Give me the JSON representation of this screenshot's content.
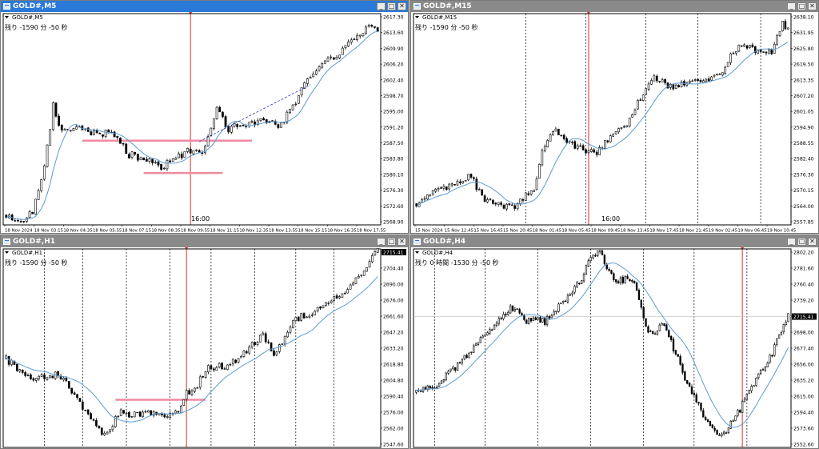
{
  "colors": {
    "active_title": "#2a78d8",
    "inactive_title": "#8a8a8a",
    "candle": "#000000",
    "moving_average": "#5b9bd5",
    "session_line": "#e03030",
    "zone_line": "#f08aa0",
    "trend_line": "#3030c0",
    "grid": "#000000"
  },
  "window_buttons": {
    "minimize": "_",
    "maximize": "□",
    "close": "✕"
  },
  "windows": [
    {
      "id": "m5",
      "title": "GOLD#,M5",
      "label": "GOLD#,M5",
      "active": true,
      "countdown": "残り -1590 分 -50 秒",
      "price_labels": [
        "2617.30",
        "2613.60",
        "2609.90",
        "2606.20",
        "2602.40",
        "2598.70",
        "2595.00",
        "2591.20",
        "2587.50",
        "2583.80",
        "2580.10",
        "2576.30",
        "2572.60",
        "2568.90"
      ],
      "time_labels": [
        "18 Nov 2024",
        "18 Nov 03:15",
        "18 Nov 04:35",
        "18 Nov 05:55",
        "18 Nov 07:15",
        "18 Nov 08:35",
        "18 Nov 09:55",
        "18 Nov 11:15",
        "18 Nov 12:35",
        "18 Nov 13:55",
        "18 Nov 15:15",
        "18 Nov 16:35",
        "18 Nov 17:55"
      ],
      "vline_label": "16:00",
      "chart_data": {
        "type": "candlestick",
        "ylim": [
          2568.9,
          2617.3
        ],
        "anchors": [
          [
            0,
            2571
          ],
          [
            5,
            2570
          ],
          [
            9,
            2572
          ],
          [
            13,
            2582
          ],
          [
            16,
            2596
          ],
          [
            19,
            2590
          ],
          [
            24,
            2591
          ],
          [
            29,
            2590
          ],
          [
            34,
            2590
          ],
          [
            38,
            2589
          ],
          [
            42,
            2585
          ],
          [
            47,
            2584
          ],
          [
            52,
            2582
          ],
          [
            58,
            2584
          ],
          [
            63,
            2586
          ],
          [
            67,
            2585
          ],
          [
            72,
            2595
          ],
          [
            76,
            2591
          ],
          [
            82,
            2592
          ],
          [
            88,
            2593
          ],
          [
            93,
            2591
          ],
          [
            98,
            2596
          ],
          [
            103,
            2602
          ],
          [
            108,
            2606
          ],
          [
            113,
            2608
          ],
          [
            118,
            2611
          ],
          [
            123,
            2614
          ],
          [
            127,
            2614
          ]
        ],
        "ma_period": 9,
        "red_vline_bar": 63,
        "zones": [
          {
            "y": 2588.2,
            "from": 26,
            "to": 84
          },
          {
            "y": 2580.8,
            "from": 47,
            "to": 74
          }
        ],
        "dashed_line": {
          "from": [
            66,
            2588
          ],
          "to": [
            104,
            2601
          ]
        }
      }
    },
    {
      "id": "m15",
      "title": "GOLD#,M15",
      "label": "GOLD#,M15",
      "active": false,
      "countdown": "残り -1590 分 -50 秒",
      "price_labels": [
        "2638.10",
        "2631.95",
        "2625.80",
        "2619.50",
        "2613.35",
        "2607.20",
        "2601.05",
        "2594.90",
        "2588.55",
        "2582.40",
        "2576.30",
        "2570.15",
        "2564.00",
        "2557.85"
      ],
      "time_labels": [
        "15 Nov 2024",
        "15 Nov 12:45",
        "15 Nov 16:45",
        "15 Nov 20:45",
        "18 Nov 01:45",
        "18 Nov 05:45",
        "18 Nov 09:45",
        "18 Nov 13:45",
        "18 Nov 17:45",
        "18 Nov 21:45",
        "19 Nov 02:45",
        "19 Nov 06:45",
        "19 Nov 10:45"
      ],
      "vline_label": "16:00",
      "chart_data": {
        "type": "candlestick",
        "ylim": [
          2557.85,
          2638.1
        ],
        "anchors": [
          [
            0,
            2566
          ],
          [
            6,
            2570
          ],
          [
            12,
            2572
          ],
          [
            20,
            2577
          ],
          [
            24,
            2568
          ],
          [
            29,
            2566
          ],
          [
            36,
            2564
          ],
          [
            39,
            2568
          ],
          [
            43,
            2572
          ],
          [
            46,
            2585
          ],
          [
            50,
            2594
          ],
          [
            56,
            2589
          ],
          [
            61,
            2586
          ],
          [
            66,
            2585
          ],
          [
            70,
            2590
          ],
          [
            76,
            2595
          ],
          [
            81,
            2604
          ],
          [
            86,
            2614
          ],
          [
            90,
            2612
          ],
          [
            94,
            2610
          ],
          [
            100,
            2612
          ],
          [
            106,
            2613
          ],
          [
            110,
            2614
          ],
          [
            114,
            2620
          ],
          [
            118,
            2626
          ],
          [
            123,
            2625
          ],
          [
            127,
            2623
          ],
          [
            130,
            2624
          ],
          [
            134,
            2634
          ],
          [
            136,
            2632
          ]
        ],
        "ma_period": 12,
        "grid_bars": [
          40,
          62,
          84,
          103,
          126
        ],
        "red_vline_bar": 63
      }
    },
    {
      "id": "h1",
      "title": "GOLD#,H1",
      "label": "GOLD#,H1",
      "active": false,
      "countdown": "残り -1590 分 -50 秒",
      "price_labels": [
        "2715.41",
        "2704.40",
        "2690.00",
        "2676.00",
        "2661.60",
        "2647.20",
        "2633.20",
        "2618.80",
        "2604.80",
        "2590.40",
        "2576.00",
        "2562.00",
        "2547.60"
      ],
      "current_price": "2715.41",
      "chart_data": {
        "type": "candlestick",
        "ylim": [
          2543,
          2716
        ],
        "anchors": [
          [
            0,
            2620
          ],
          [
            4,
            2612
          ],
          [
            8,
            2603
          ],
          [
            14,
            2605
          ],
          [
            18,
            2606
          ],
          [
            22,
            2600
          ],
          [
            27,
            2582
          ],
          [
            31,
            2567
          ],
          [
            35,
            2556
          ],
          [
            38,
            2560
          ],
          [
            42,
            2574
          ],
          [
            47,
            2571
          ],
          [
            53,
            2573
          ],
          [
            58,
            2568
          ],
          [
            63,
            2576
          ],
          [
            66,
            2590
          ],
          [
            70,
            2598
          ],
          [
            74,
            2612
          ],
          [
            80,
            2614
          ],
          [
            86,
            2622
          ],
          [
            90,
            2632
          ],
          [
            94,
            2640
          ],
          [
            98,
            2626
          ],
          [
            101,
            2634
          ],
          [
            105,
            2654
          ],
          [
            111,
            2660
          ],
          [
            117,
            2668
          ],
          [
            123,
            2676
          ],
          [
            128,
            2690
          ],
          [
            132,
            2702
          ],
          [
            136,
            2716
          ]
        ],
        "ma_period": 16,
        "grid_bars": [
          14,
          28,
          44,
          60,
          75,
          91,
          106,
          120
        ],
        "red_vline_bar": 66,
        "zones": [
          {
            "y": 2584.5,
            "from": 40,
            "to": 73
          }
        ]
      }
    },
    {
      "id": "h4",
      "title": "GOLD#,H4",
      "label": "GOLD#,H4",
      "active": false,
      "countdown": "残り 0 時間 -1530 分 -50 秒",
      "price_labels": [
        "2802.20",
        "2781.60",
        "2760.40",
        "2739.20",
        "2718.40",
        "2698.00",
        "2677.40",
        "2656.00",
        "2635.20",
        "2615.00",
        "2594.40",
        "2573.60",
        "2552.60"
      ],
      "current_price": "2715.41",
      "chart_data": {
        "type": "candlestick",
        "ylim": [
          2546,
          2803
        ],
        "anchors": [
          [
            0,
            2617
          ],
          [
            5,
            2622
          ],
          [
            10,
            2630
          ],
          [
            15,
            2645
          ],
          [
            20,
            2658
          ],
          [
            25,
            2675
          ],
          [
            30,
            2690
          ],
          [
            36,
            2710
          ],
          [
            41,
            2728
          ],
          [
            45,
            2720
          ],
          [
            48,
            2710
          ],
          [
            52,
            2712
          ],
          [
            56,
            2708
          ],
          [
            61,
            2725
          ],
          [
            66,
            2742
          ],
          [
            72,
            2765
          ],
          [
            76,
            2790
          ],
          [
            80,
            2798
          ],
          [
            84,
            2772
          ],
          [
            88,
            2762
          ],
          [
            93,
            2765
          ],
          [
            96,
            2752
          ],
          [
            100,
            2700
          ],
          [
            104,
            2695
          ],
          [
            108,
            2706
          ],
          [
            112,
            2675
          ],
          [
            117,
            2636
          ],
          [
            122,
            2608
          ],
          [
            127,
            2575
          ],
          [
            131,
            2560
          ],
          [
            135,
            2568
          ],
          [
            140,
            2590
          ],
          [
            145,
            2620
          ],
          [
            150,
            2643
          ],
          [
            155,
            2668
          ],
          [
            160,
            2706
          ],
          [
            162,
            2716
          ]
        ],
        "ma_period": 14,
        "grid_bars": [
          8,
          30,
          53,
          76,
          99,
          121,
          144
        ],
        "red_vline_bar": 142,
        "hline_price": 2715.41
      }
    }
  ]
}
